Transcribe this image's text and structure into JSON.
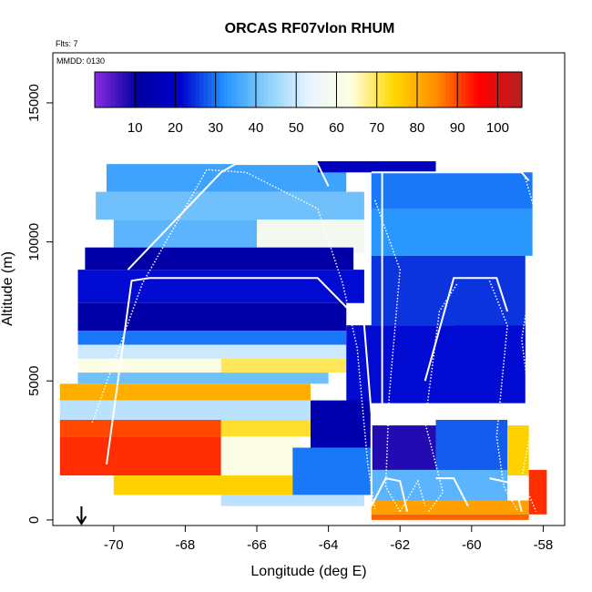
{
  "chart_data": {
    "type": "heatmap",
    "title": "ORCAS RF07vlon RHUM",
    "annotations": {
      "flights": "Flts: 7",
      "date": "MMDD: 0130"
    },
    "xlabel": "Longitude (deg E)",
    "ylabel": "Altitude (m)",
    "xlim": [
      -71.7,
      -57.4
    ],
    "ylim": [
      -200,
      16800
    ],
    "x_ticks": [
      -70,
      -68,
      -66,
      -64,
      -62,
      -60,
      -58
    ],
    "y_ticks": [
      0,
      5000,
      10000,
      15000
    ],
    "y_tick_labels": [
      "0",
      "5000",
      "10000",
      "15000"
    ],
    "colorbar": {
      "range": [
        0,
        106
      ],
      "ticks": [
        10,
        20,
        30,
        40,
        50,
        60,
        70,
        80,
        90,
        100
      ],
      "colors": [
        "#8a2be2",
        "#0000a0",
        "#0000cd",
        "#1e90ff",
        "#87cefa",
        "#e8f4ff",
        "#ffffe0",
        "#ffd700",
        "#ff8c00",
        "#ff0000",
        "#b22222"
      ]
    },
    "marker_longitude": -70.9,
    "regions": [
      {
        "lon": [
          -70.2,
          -63.5
        ],
        "alt": [
          11800,
          12800
        ],
        "rhum": 35
      },
      {
        "lon": [
          -64.3,
          -61.0
        ],
        "alt": [
          12500,
          12900
        ],
        "rhum": 18
      },
      {
        "lon": [
          -62.8,
          -58.3
        ],
        "alt": [
          11200,
          12500
        ],
        "rhum": 30
      },
      {
        "lon": [
          -70.5,
          -63.0
        ],
        "alt": [
          10800,
          11800
        ],
        "rhum": 40
      },
      {
        "lon": [
          -66.0,
          -63.0
        ],
        "alt": [
          9600,
          10800
        ],
        "rhum": 58
      },
      {
        "lon": [
          -70.0,
          -66.0
        ],
        "alt": [
          9800,
          10800
        ],
        "rhum": 38
      },
      {
        "lon": [
          -62.8,
          -58.3
        ],
        "alt": [
          9500,
          11200
        ],
        "rhum": 33
      },
      {
        "lon": [
          -70.8,
          -63.3
        ],
        "alt": [
          9000,
          9800
        ],
        "rhum": 12
      },
      {
        "lon": [
          -71.0,
          -63.0
        ],
        "alt": [
          7800,
          9000
        ],
        "rhum": 22
      },
      {
        "lon": [
          -62.8,
          -58.5
        ],
        "alt": [
          7000,
          9500
        ],
        "rhum": 25
      },
      {
        "lon": [
          -71.0,
          -63.5
        ],
        "alt": [
          6800,
          7800
        ],
        "rhum": 12
      },
      {
        "lon": [
          -71.0,
          -63.5
        ],
        "alt": [
          6300,
          6800
        ],
        "rhum": 30
      },
      {
        "lon": [
          -60.5,
          -58.5
        ],
        "alt": [
          5500,
          7000
        ],
        "rhum": 10
      },
      {
        "lon": [
          -71.0,
          -63.5
        ],
        "alt": [
          5800,
          6300
        ],
        "rhum": 50
      },
      {
        "lon": [
          -67.0,
          -63.5
        ],
        "alt": [
          5300,
          5800
        ],
        "rhum": 70
      },
      {
        "lon": [
          -71.0,
          -67.0
        ],
        "alt": [
          5300,
          5800
        ],
        "rhum": 62
      },
      {
        "lon": [
          -71.0,
          -64.0
        ],
        "alt": [
          4900,
          5300
        ],
        "rhum": 40
      },
      {
        "lon": [
          -63.5,
          -58.5
        ],
        "alt": [
          4200,
          7000
        ],
        "rhum": 22
      },
      {
        "lon": [
          -71.5,
          -64.5
        ],
        "alt": [
          4300,
          4900
        ],
        "rhum": 80
      },
      {
        "lon": [
          -71.5,
          -64.5
        ],
        "alt": [
          3600,
          4300
        ],
        "rhum": 48
      },
      {
        "lon": [
          -71.5,
          -67.0
        ],
        "alt": [
          3000,
          3600
        ],
        "rhum": 90
      },
      {
        "lon": [
          -67.0,
          -64.5
        ],
        "alt": [
          3000,
          3600
        ],
        "rhum": 72
      },
      {
        "lon": [
          -64.5,
          -62.8
        ],
        "alt": [
          2600,
          4300
        ],
        "rhum": 14
      },
      {
        "lon": [
          -71.5,
          -67.0
        ],
        "alt": [
          1600,
          3000
        ],
        "rhum": 92
      },
      {
        "lon": [
          -67.0,
          -64.8
        ],
        "alt": [
          1600,
          3000
        ],
        "rhum": 62
      },
      {
        "lon": [
          -62.8,
          -61.0
        ],
        "alt": [
          1800,
          3400
        ],
        "rhum": 8
      },
      {
        "lon": [
          -61.0,
          -59.0
        ],
        "alt": [
          1600,
          3600
        ],
        "rhum": 28
      },
      {
        "lon": [
          -59.0,
          -58.4
        ],
        "alt": [
          1600,
          3400
        ],
        "rhum": 75
      },
      {
        "lon": [
          -70.0,
          -65.0
        ],
        "alt": [
          900,
          1600
        ],
        "rhum": 75
      },
      {
        "lon": [
          -65.0,
          -62.8
        ],
        "alt": [
          900,
          2600
        ],
        "rhum": 30
      },
      {
        "lon": [
          -62.8,
          -59.0
        ],
        "alt": [
          700,
          1800
        ],
        "rhum": 38
      },
      {
        "lon": [
          -67.0,
          -63.0
        ],
        "alt": [
          500,
          900
        ],
        "rhum": 48
      },
      {
        "lon": [
          -62.8,
          -58.4
        ],
        "alt": [
          200,
          700
        ],
        "rhum": 82
      },
      {
        "lon": [
          -58.4,
          -57.9
        ],
        "alt": [
          200,
          1800
        ],
        "rhum": 92
      },
      {
        "lon": [
          -62.8,
          -58.4
        ],
        "alt": [
          0,
          200
        ],
        "rhum": 88
      }
    ],
    "flight_track": {
      "solid": [
        [
          [
            -70.2,
            2000
          ],
          [
            -69.5,
            8600
          ],
          [
            -69.0,
            8700
          ],
          [
            -64.3,
            8700
          ],
          [
            -63.0,
            7000
          ],
          [
            -62.8,
            3800
          ],
          [
            -62.8,
            500
          ],
          [
            -62.6,
            1000
          ],
          [
            -62.4,
            1500
          ],
          [
            -62.0,
            1400
          ],
          [
            -61.8,
            300
          ]
        ],
        [
          [
            -62.5,
            12500
          ],
          [
            -62.5,
            4000
          ]
        ],
        [
          [
            -69.6,
            9000
          ],
          [
            -67.0,
            12500
          ],
          [
            -66.6,
            12800
          ],
          [
            -64.3,
            12800
          ],
          [
            -64.0,
            12000
          ]
        ],
        [
          [
            -62.8,
            12500
          ],
          [
            -58.6,
            12500
          ],
          [
            -58.4,
            12200
          ]
        ],
        [
          [
            -61.3,
            5000
          ],
          [
            -60.5,
            8700
          ],
          [
            -59.3,
            8700
          ],
          [
            -59.0,
            7500
          ]
        ],
        [
          [
            -61.0,
            1500
          ],
          [
            -60.5,
            1500
          ],
          [
            -60.1,
            500
          ]
        ],
        [
          [
            -59.5,
            1500
          ],
          [
            -58.8,
            1300
          ],
          [
            -58.6,
            300
          ]
        ]
      ],
      "dotted": [
        [
          [
            -70.6,
            3500
          ],
          [
            -69.2,
            8500
          ],
          [
            -67.4,
            12600
          ],
          [
            -66.3,
            12500
          ],
          [
            -64.3,
            11200
          ],
          [
            -63.6,
            8500
          ],
          [
            -63.2,
            6200
          ],
          [
            -62.9,
            2000
          ],
          [
            -62.7,
            400
          ]
        ],
        [
          [
            -62.7,
            11500
          ],
          [
            -62.0,
            9000
          ],
          [
            -62.3,
            4500
          ],
          [
            -62.4,
            1200
          ],
          [
            -62.0,
            300
          ]
        ],
        [
          [
            -61.2,
            300
          ],
          [
            -60.8,
            1000
          ],
          [
            -61.3,
            3500
          ],
          [
            -60.9,
            7500
          ],
          [
            -60.4,
            8500
          ]
        ],
        [
          [
            -59.5,
            8600
          ],
          [
            -59.0,
            7000
          ],
          [
            -59.3,
            3000
          ],
          [
            -59.1,
            1200
          ],
          [
            -58.7,
            300
          ]
        ],
        [
          [
            -58.5,
            12300
          ],
          [
            -58.1,
            10500
          ],
          [
            -58.6,
            6500
          ],
          [
            -58.3,
            3500
          ],
          [
            -58.6,
            1500
          ],
          [
            -58.2,
            300
          ]
        ],
        [
          [
            -62.0,
            300
          ],
          [
            -61.5,
            1400
          ],
          [
            -61.3,
            500
          ]
        ]
      ]
    }
  }
}
